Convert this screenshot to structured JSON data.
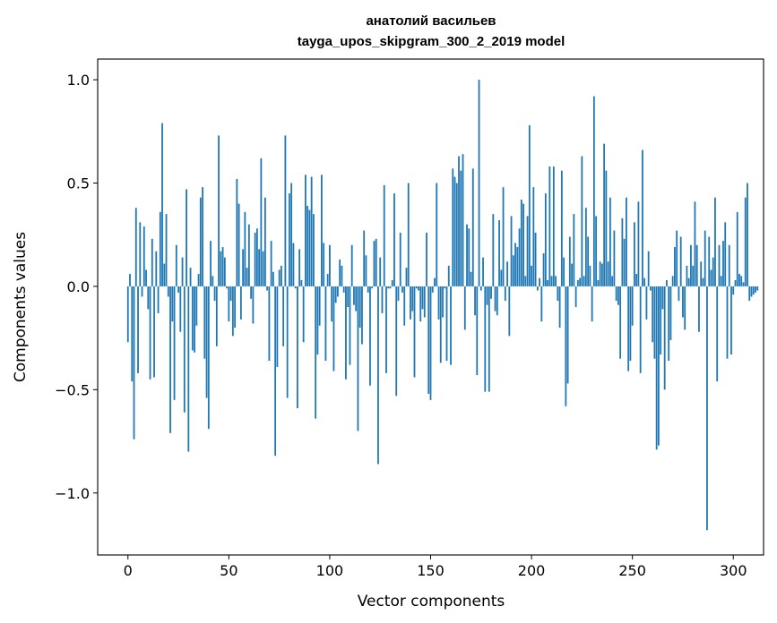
{
  "chart_data": {
    "type": "bar",
    "title": "анатолий васильев",
    "subtitle": "tayga_upos_skipgram_300_2_2019 model",
    "xlabel": "Vector components",
    "ylabel": "Components values",
    "xlim": [
      -15,
      315
    ],
    "ylim": [
      -1.3,
      1.1
    ],
    "xticks": [
      0,
      50,
      100,
      150,
      200,
      250,
      300
    ],
    "xtick_labels": [
      "0",
      "50",
      "100",
      "150",
      "200",
      "250",
      "300"
    ],
    "yticks": [
      -1.0,
      -0.5,
      0.0,
      0.5,
      1.0
    ],
    "ytick_labels": [
      "−1.0",
      "−0.5",
      "0.0",
      "0.5",
      "1.0"
    ],
    "bar_color": "#1f77b4",
    "grid": false,
    "legend": "none",
    "series": [
      {
        "values": [
          -0.27,
          0.06,
          -0.46,
          -0.74,
          0.38,
          -0.42,
          0.31,
          -0.05,
          0.29,
          0.08,
          -0.11,
          -0.45,
          0.23,
          -0.44,
          0.17,
          -0.13,
          0.36,
          0.79,
          0.11,
          0.35,
          -0.05,
          -0.71,
          -0.17,
          -0.55,
          0.2,
          -0.03,
          -0.22,
          0.14,
          -0.61,
          0.47,
          -0.8,
          0.09,
          -0.31,
          -0.32,
          -0.19,
          0.06,
          0.43,
          0.48,
          -0.35,
          -0.54,
          -0.69,
          0.22,
          0.05,
          -0.07,
          -0.29,
          0.73,
          0.17,
          0.19,
          0.14,
          -0.01,
          -0.17,
          -0.07,
          -0.24,
          -0.2,
          0.52,
          0.4,
          -0.16,
          0.18,
          0.36,
          0.09,
          0.3,
          -0.06,
          -0.18,
          0.26,
          0.28,
          0.18,
          0.62,
          0.17,
          0.43,
          -0.02,
          -0.36,
          0.22,
          0.07,
          -0.82,
          -0.39,
          0.08,
          0.1,
          -0.29,
          0.73,
          -0.54,
          0.45,
          0.5,
          0.21,
          -0.01,
          -0.59,
          0.18,
          0.03,
          -0.27,
          0.54,
          0.39,
          0.37,
          0.53,
          0.35,
          -0.64,
          -0.33,
          -0.19,
          0.54,
          0.21,
          -0.36,
          0.06,
          0.2,
          -0.17,
          -0.41,
          -0.08,
          -0.05,
          0.13,
          0.1,
          -0.03,
          -0.45,
          -0.1,
          -0.38,
          0.2,
          -0.09,
          -0.12,
          -0.7,
          -0.2,
          -0.28,
          0.27,
          0.15,
          -0.03,
          -0.48,
          -0.01,
          0.22,
          0.23,
          -0.86,
          0.14,
          -0.13,
          0.49,
          -0.42,
          -0.01,
          -0.01,
          0.03,
          0.45,
          -0.53,
          -0.07,
          0.26,
          -0.03,
          -0.19,
          0.09,
          0.5,
          -0.16,
          -0.12,
          -0.44,
          -0.01,
          -0.02,
          -0.17,
          -0.11,
          -0.15,
          0.26,
          -0.52,
          -0.55,
          -0.03,
          0.04,
          0.5,
          -0.16,
          -0.37,
          -0.15,
          -0.01,
          -0.36,
          0.1,
          -0.38,
          0.57,
          0.53,
          0.5,
          0.63,
          0.56,
          0.64,
          -0.21,
          0.3,
          0.28,
          0.07,
          0.57,
          -0.14,
          -0.43,
          1.0,
          -0.02,
          0.14,
          -0.51,
          -0.09,
          -0.51,
          -0.06,
          0.35,
          -0.12,
          -0.14,
          0.32,
          0.08,
          0.48,
          -0.07,
          0.12,
          -0.24,
          0.34,
          0.15,
          0.21,
          0.19,
          0.28,
          0.42,
          0.4,
          0.05,
          0.34,
          0.78,
          0.1,
          0.48,
          0.26,
          -0.02,
          0.04,
          -0.17,
          0.16,
          0.45,
          0.03,
          0.58,
          0.05,
          0.58,
          0.05,
          -0.07,
          -0.2,
          0.56,
          0.14,
          -0.58,
          -0.47,
          0.24,
          0.11,
          0.35,
          -0.1,
          0.03,
          0.04,
          0.63,
          0.05,
          0.38,
          0.24,
          0.1,
          -0.17,
          0.92,
          0.34,
          0.03,
          0.12,
          0.11,
          0.69,
          0.56,
          0.12,
          0.43,
          0.05,
          0.27,
          -0.07,
          -0.09,
          -0.35,
          0.33,
          0.23,
          0.43,
          -0.41,
          -0.36,
          -0.19,
          0.31,
          0.06,
          0.41,
          -0.42,
          0.66,
          0.04,
          -0.16,
          0.17,
          -0.02,
          -0.27,
          -0.35,
          -0.79,
          -0.77,
          -0.33,
          -0.11,
          -0.5,
          0.03,
          -0.36,
          -0.26,
          0.05,
          0.19,
          0.27,
          -0.07,
          0.24,
          -0.15,
          -0.21,
          0.1,
          0.04,
          0.2,
          0.1,
          0.41,
          0.2,
          -0.22,
          0.12,
          0.04,
          0.27,
          -1.18,
          0.24,
          0.08,
          0.14,
          0.43,
          -0.46,
          0.2,
          0.05,
          0.22,
          0.31,
          -0.35,
          0.2,
          -0.33,
          -0.04,
          0.03,
          0.36,
          0.06,
          0.05,
          0.02,
          0.43,
          0.5,
          -0.07,
          -0.05,
          -0.04,
          -0.03,
          -0.02
        ]
      }
    ]
  }
}
